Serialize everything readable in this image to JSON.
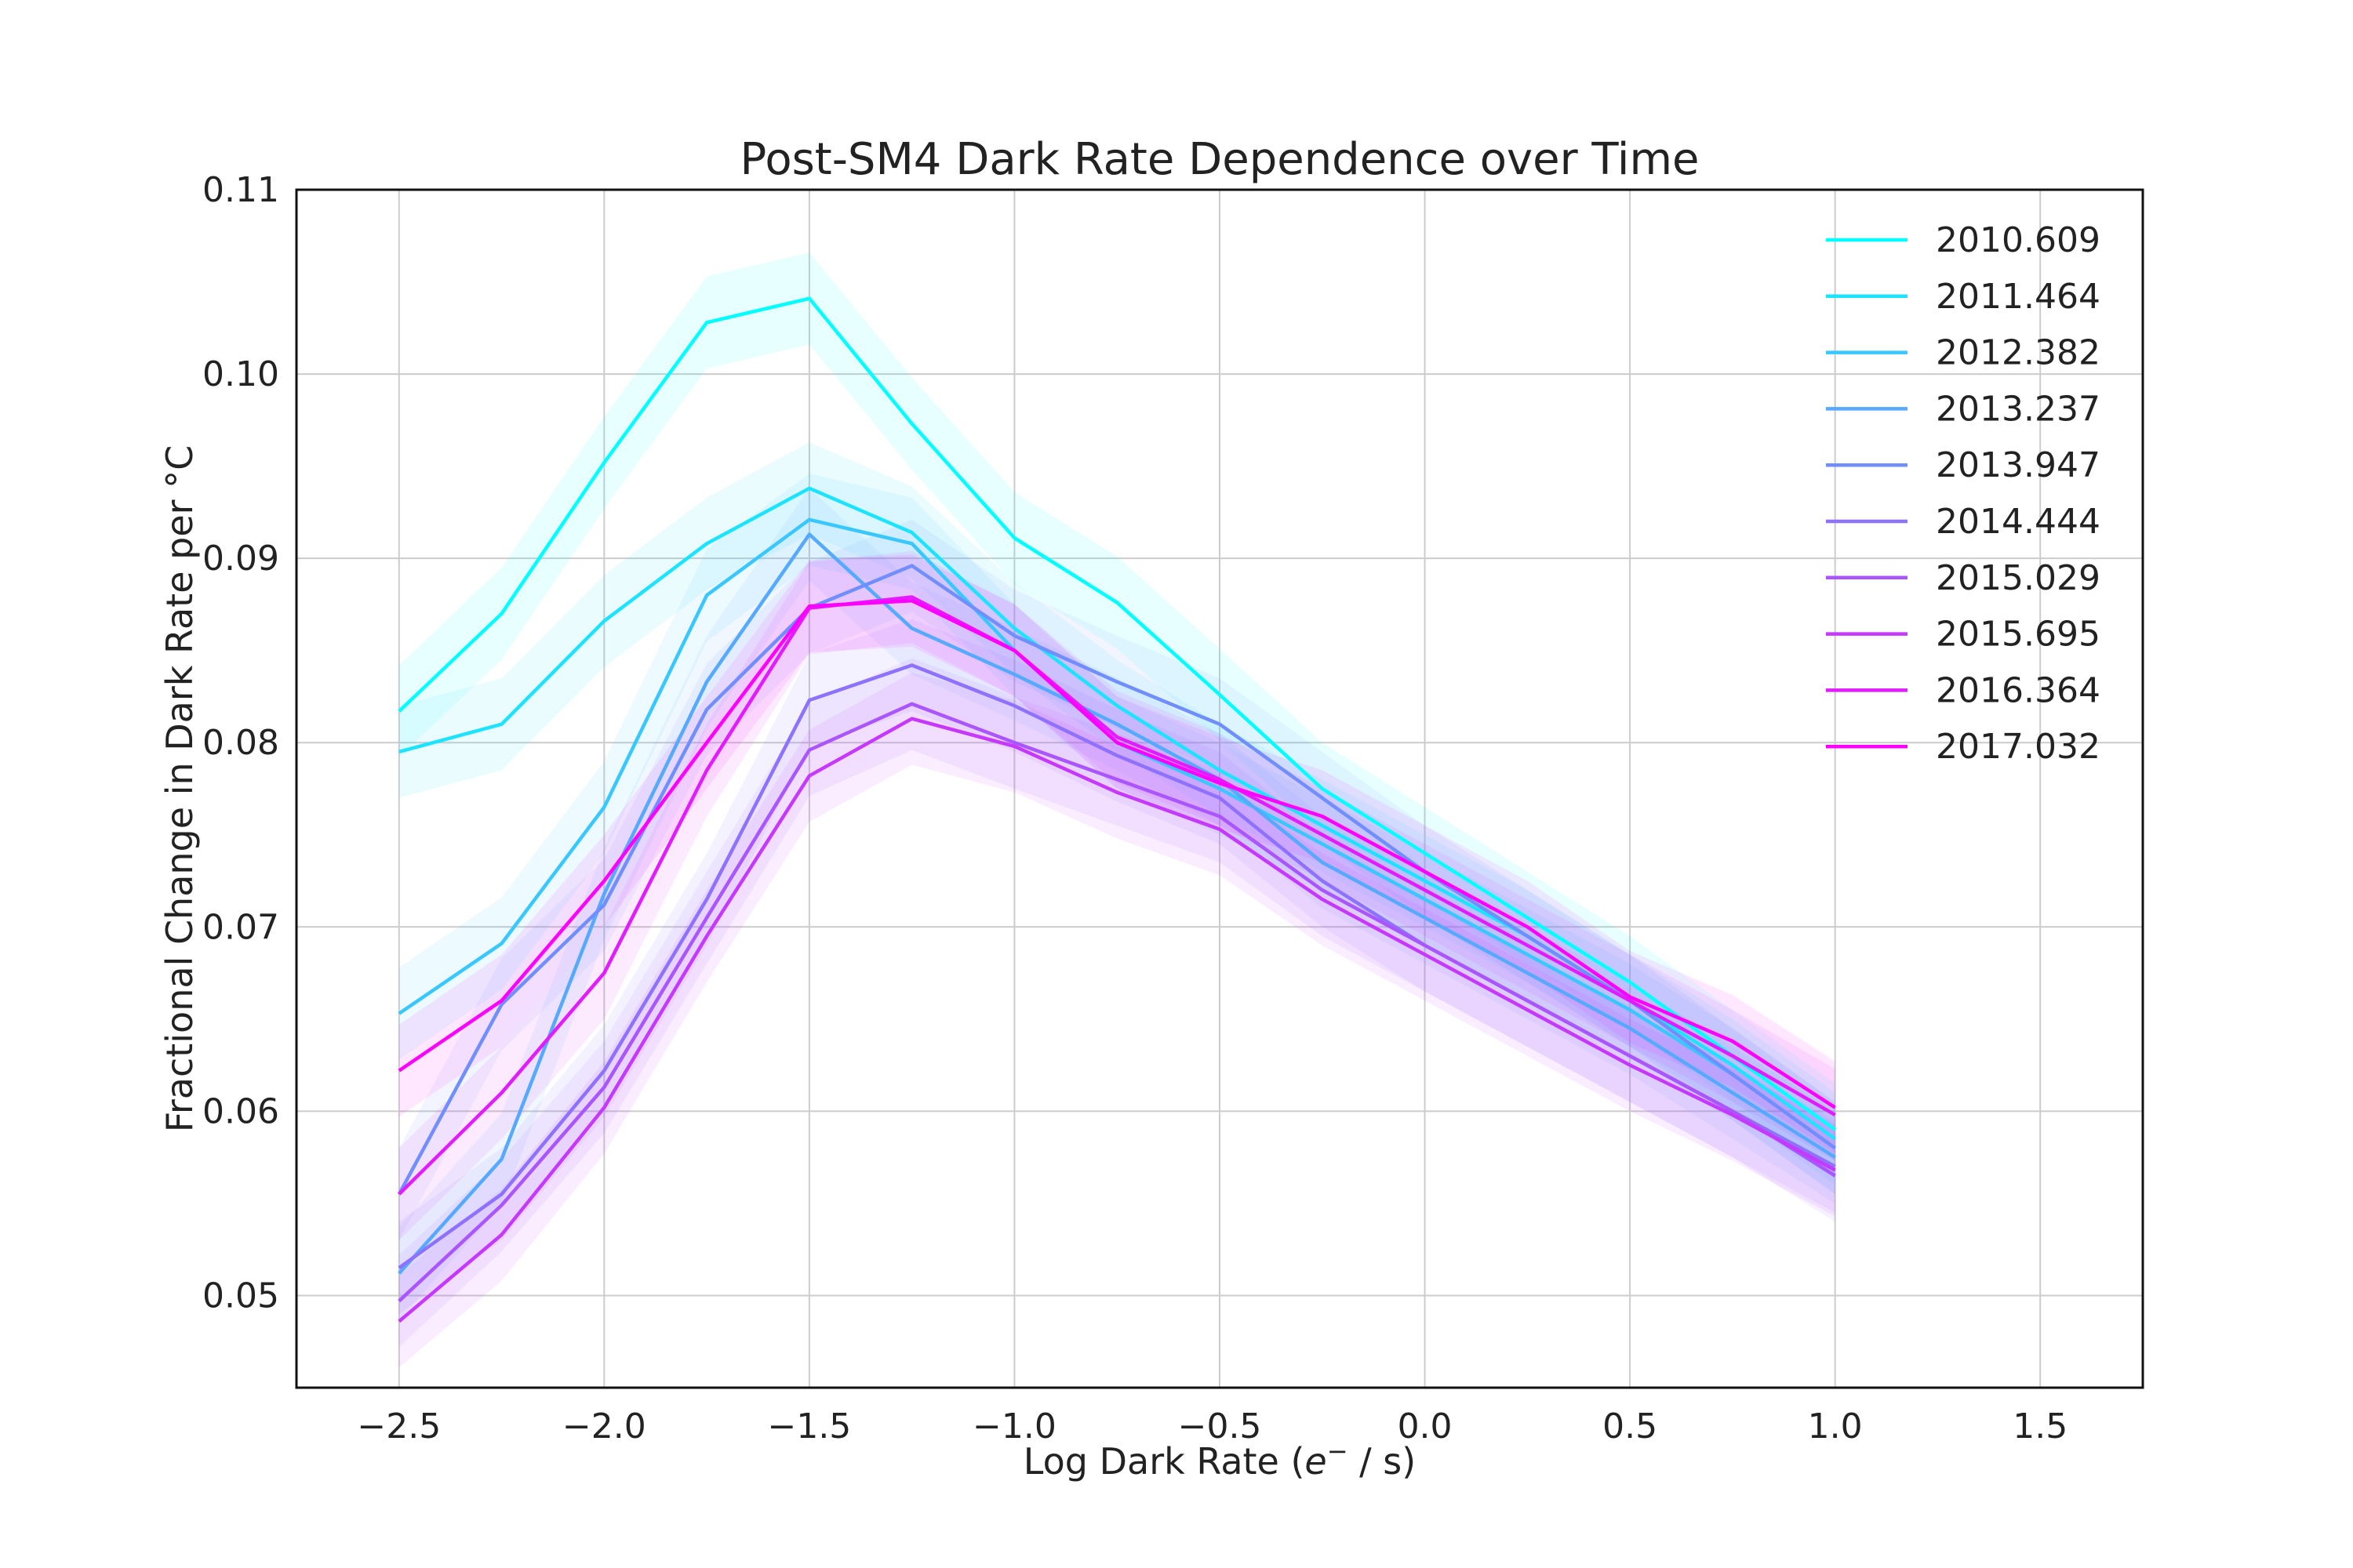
{
  "chart_data": {
    "type": "line",
    "title": "Post-SM4 Dark Rate Dependence over Time",
    "xlabel": "Log Dark Rate (",
    "xlabel_italic": "e",
    "xlabel_sup": "−",
    "xlabel_tail": " / s)",
    "ylabel": "Fractional Change in Dark Rate per °C",
    "xlim": [
      -2.75,
      1.75
    ],
    "ylim": [
      0.045,
      0.11
    ],
    "x_ticks": [
      -2.5,
      -2.0,
      -1.5,
      -1.0,
      -0.5,
      0.0,
      0.5,
      1.0,
      1.5
    ],
    "x_tick_labels": [
      "−2.5",
      "−2.0",
      "−1.5",
      "−1.0",
      "−0.5",
      "0.0",
      "0.5",
      "1.0",
      "1.5"
    ],
    "y_ticks": [
      0.05,
      0.06,
      0.07,
      0.08,
      0.09,
      0.1,
      0.11
    ],
    "y_tick_labels": [
      "0.05",
      "0.06",
      "0.07",
      "0.08",
      "0.09",
      "0.10",
      "0.11"
    ],
    "grid": true,
    "legend_position": "top-right",
    "band_halfwidth": 0.0025,
    "x": [
      -2.5,
      -2.25,
      -2.0,
      -1.75,
      -1.5,
      -1.25,
      -1.0,
      -0.75,
      -0.5,
      -0.25,
      0.0,
      0.25,
      0.5,
      0.75,
      1.0
    ],
    "series": [
      {
        "name": "2010.609",
        "color": "#00ffff",
        "values": [
          0.0817,
          0.087,
          0.0952,
          0.1028,
          0.1041,
          0.0973,
          0.0911,
          0.0876,
          0.0826,
          0.0775,
          0.074,
          0.0705,
          0.067,
          0.063,
          0.059
        ]
      },
      {
        "name": "2011.464",
        "color": "#1ce3ff",
        "values": [
          0.0795,
          0.081,
          0.0866,
          0.0908,
          0.0938,
          0.0914,
          0.0862,
          0.082,
          0.0785,
          0.0755,
          0.0725,
          0.0695,
          0.066,
          0.0625,
          0.0585
        ]
      },
      {
        "name": "2012.382",
        "color": "#38c7ff",
        "values": [
          0.0653,
          0.0691,
          0.0765,
          0.088,
          0.0921,
          0.0908,
          0.085,
          0.08,
          0.0775,
          0.0745,
          0.0715,
          0.0685,
          0.0655,
          0.062,
          0.058
        ]
      },
      {
        "name": "2013.237",
        "color": "#55aaff",
        "values": [
          0.0512,
          0.0574,
          0.0718,
          0.0833,
          0.0913,
          0.0862,
          0.0837,
          0.081,
          0.078,
          0.0735,
          0.0705,
          0.0675,
          0.0645,
          0.061,
          0.0575
        ]
      },
      {
        "name": "2013.947",
        "color": "#718eff",
        "values": [
          0.0555,
          0.0658,
          0.0712,
          0.0818,
          0.0873,
          0.0896,
          0.0858,
          0.0833,
          0.081,
          0.077,
          0.073,
          0.0695,
          0.066,
          0.062,
          0.058
        ]
      },
      {
        "name": "2014.444",
        "color": "#8e71ff",
        "values": [
          0.0515,
          0.0555,
          0.0622,
          0.0715,
          0.0823,
          0.0842,
          0.082,
          0.0793,
          0.077,
          0.0725,
          0.069,
          0.066,
          0.063,
          0.06,
          0.057
        ]
      },
      {
        "name": "2015.029",
        "color": "#aa55ff",
        "values": [
          0.0497,
          0.0549,
          0.0613,
          0.0705,
          0.0796,
          0.0821,
          0.08,
          0.078,
          0.076,
          0.072,
          0.069,
          0.066,
          0.063,
          0.06,
          0.0565
        ]
      },
      {
        "name": "2015.695",
        "color": "#c738ff",
        "values": [
          0.0486,
          0.0533,
          0.0602,
          0.0695,
          0.0782,
          0.0813,
          0.0798,
          0.0773,
          0.0753,
          0.0715,
          0.0685,
          0.0655,
          0.0625,
          0.0598,
          0.0568
        ]
      },
      {
        "name": "2016.364",
        "color": "#e31cff",
        "values": [
          0.0555,
          0.061,
          0.0675,
          0.0785,
          0.0873,
          0.0879,
          0.085,
          0.0803,
          0.078,
          0.075,
          0.072,
          0.069,
          0.066,
          0.063,
          0.0598
        ]
      },
      {
        "name": "2017.032",
        "color": "#ff00ff",
        "values": [
          0.0622,
          0.066,
          0.0725,
          0.08,
          0.0874,
          0.0877,
          0.085,
          0.08,
          0.0778,
          0.076,
          0.073,
          0.07,
          0.0662,
          0.0638,
          0.0602
        ]
      }
    ]
  }
}
